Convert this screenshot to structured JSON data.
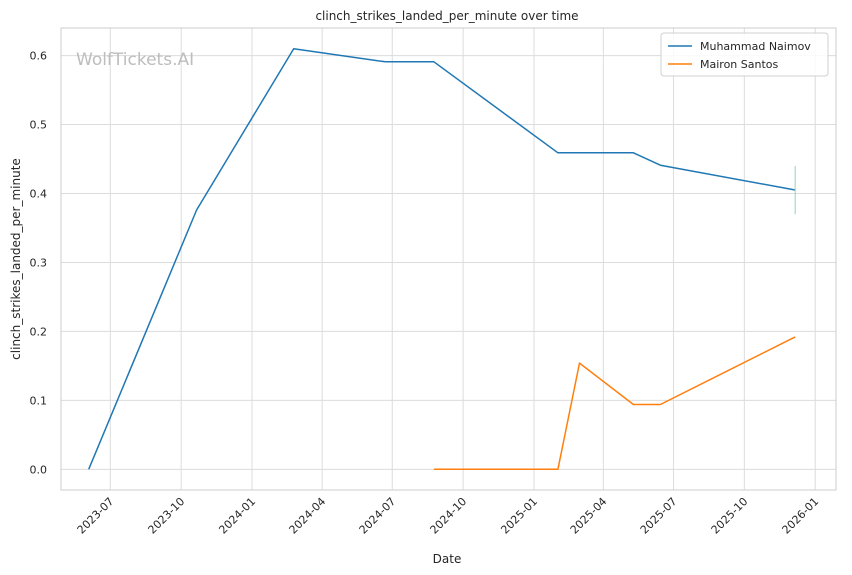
{
  "chart_data": {
    "type": "line",
    "title": "clinch_strikes_landed_per_minute over time",
    "xlabel": "Date",
    "ylabel": "clinch_strikes_landed_per_minute",
    "watermark": "WolfTickets.AI",
    "x_ticks": [
      "2023-07",
      "2023-10",
      "2024-01",
      "2024-04",
      "2024-07",
      "2024-10",
      "2025-01",
      "2025-04",
      "2025-07",
      "2025-10",
      "2026-01"
    ],
    "y_ticks": [
      "0.0",
      "0.1",
      "0.2",
      "0.3",
      "0.4",
      "0.5",
      "0.6"
    ],
    "ylim": [
      -0.03,
      0.64
    ],
    "xlim": [
      "2023-04-28",
      "2026-01-28"
    ],
    "grid": true,
    "legend_position": "top-right",
    "series": [
      {
        "name": "Muhammad Naimov",
        "color": "#1f77b4",
        "points": [
          {
            "x": "2023-06-03",
            "y": 0.0
          },
          {
            "x": "2023-10-21",
            "y": 0.376
          },
          {
            "x": "2024-02-24",
            "y": 0.61
          },
          {
            "x": "2024-06-22",
            "y": 0.591
          },
          {
            "x": "2024-08-24",
            "y": 0.591
          },
          {
            "x": "2025-02-01",
            "y": 0.459
          },
          {
            "x": "2025-05-10",
            "y": 0.459
          },
          {
            "x": "2025-06-14",
            "y": 0.441
          },
          {
            "x": "2025-12-06",
            "y": 0.405
          }
        ],
        "error_bar": {
          "x": "2025-12-06",
          "low": 0.37,
          "high": 0.44
        }
      },
      {
        "name": "Mairon Santos",
        "color": "#ff7f0e",
        "points": [
          {
            "x": "2024-08-24",
            "y": 0.0
          },
          {
            "x": "2025-02-01",
            "y": 0.0
          },
          {
            "x": "2025-03-01",
            "y": 0.154
          },
          {
            "x": "2025-05-10",
            "y": 0.094
          },
          {
            "x": "2025-06-14",
            "y": 0.094
          },
          {
            "x": "2025-12-06",
            "y": 0.192
          }
        ]
      }
    ]
  }
}
